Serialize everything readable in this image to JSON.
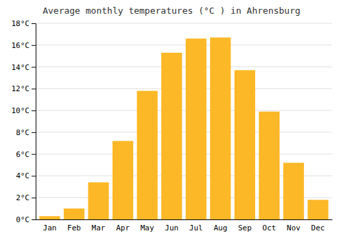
{
  "chart_data": {
    "type": "bar",
    "title": "Average monthly temperatures (°C ) in Ahrensburg",
    "categories": [
      "Jan",
      "Feb",
      "Mar",
      "Apr",
      "May",
      "Jun",
      "Jul",
      "Aug",
      "Sep",
      "Oct",
      "Nov",
      "Dec"
    ],
    "values": [
      0.3,
      1.0,
      3.4,
      7.2,
      11.8,
      15.3,
      16.6,
      16.7,
      13.7,
      9.9,
      5.2,
      1.8
    ],
    "color": "#FDB827",
    "ylim": [
      0,
      18
    ],
    "yticks": [
      {
        "value": 0,
        "label": "0°C"
      },
      {
        "value": 2,
        "label": "2°C"
      },
      {
        "value": 4,
        "label": "4°C"
      },
      {
        "value": 6,
        "label": "6°C"
      },
      {
        "value": 8,
        "label": "8°C"
      },
      {
        "value": 10,
        "label": "10°C"
      },
      {
        "value": 12,
        "label": "12°C"
      },
      {
        "value": 14,
        "label": "14°C"
      },
      {
        "value": 16,
        "label": "16°C"
      },
      {
        "value": 18,
        "label": "18°C"
      }
    ],
    "grid": true
  }
}
